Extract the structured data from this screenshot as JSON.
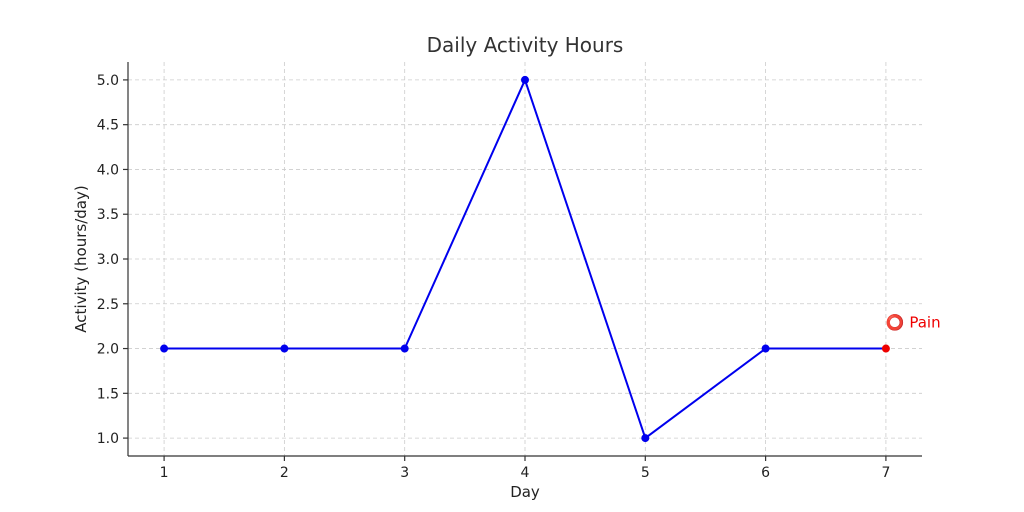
{
  "chart_data": {
    "type": "line",
    "title": "Daily Activity Hours",
    "xlabel": "Day",
    "ylabel": "Activity (hours/day)",
    "x": [
      1,
      2,
      3,
      4,
      5,
      6,
      7
    ],
    "xlim": [
      0.7,
      7.3
    ],
    "ylim": [
      0.8,
      5.2
    ],
    "xticks": [
      1,
      2,
      3,
      4,
      5,
      6,
      7
    ],
    "yticks": [
      1.0,
      1.5,
      2.0,
      2.5,
      3.0,
      3.5,
      4.0,
      4.5,
      5.0
    ],
    "grid": true,
    "series": [
      {
        "values": [
          2,
          2,
          2,
          5,
          1,
          2,
          2
        ],
        "color": "#0000ee",
        "highlight": {
          "index": 6,
          "color": "#ee0000"
        }
      }
    ],
    "annotations": [
      {
        "x": 7,
        "y": 2,
        "text": "⭕ Pain",
        "color": "#ee0000"
      }
    ]
  }
}
